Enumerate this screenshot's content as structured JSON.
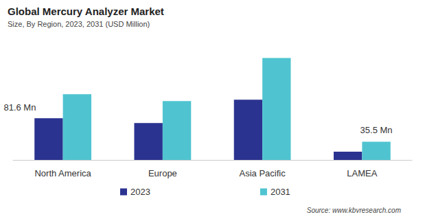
{
  "chart_data": {
    "type": "bar",
    "title": "Global Mercury Analyzer Market",
    "subtitle": "Size, By Region, 2023, 2031 (USD Million)",
    "source": "Source: www.kbvresearch.com",
    "categories": [
      "North America",
      "Europe",
      "Asia Pacific",
      "LAMEA"
    ],
    "series": [
      {
        "name": "2023",
        "color": "#2b3390",
        "values": [
          81.6,
          72.3,
          117.8,
          16.0
        ],
        "value_labels": [
          "81.6 Mn",
          null,
          null,
          null
        ]
      },
      {
        "name": "2031",
        "color": "#4fc4d0",
        "values": [
          128.4,
          115.0,
          199.4,
          35.5
        ],
        "value_labels": [
          null,
          null,
          null,
          "35.5 Mn"
        ]
      }
    ],
    "ylim": [
      0,
      200
    ],
    "tick_labels": "x",
    "grid": false,
    "legend": "bottom"
  }
}
